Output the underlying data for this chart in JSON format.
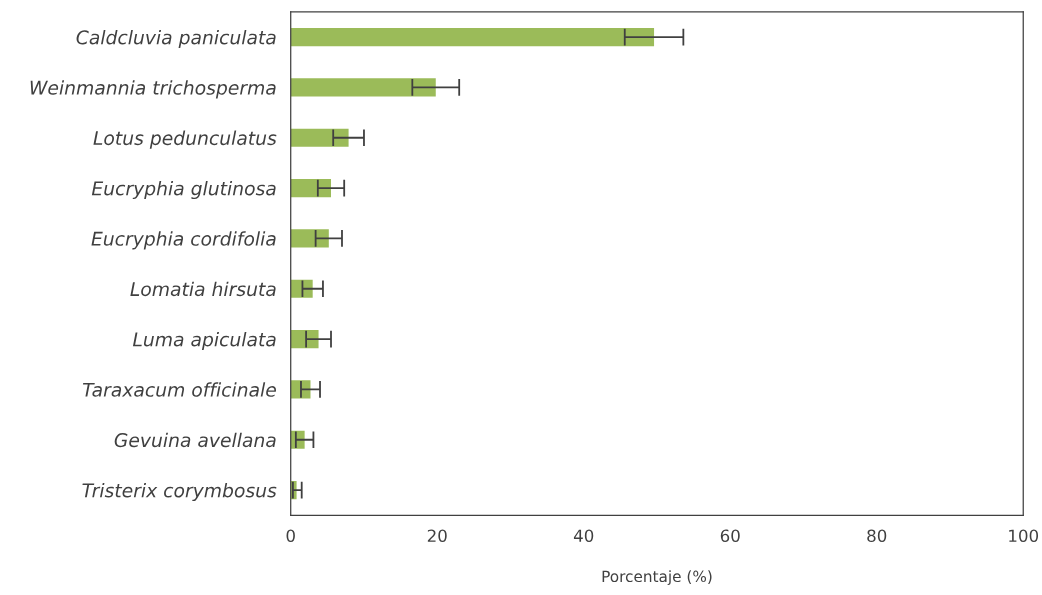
{
  "chart_data": {
    "type": "bar",
    "orientation": "horizontal",
    "xlabel": "Porcentaje (%)",
    "categories": [
      "Caldcluvia paniculata",
      "Weinmannia trichosperma",
      "Lotus pedunculatus",
      "Eucryphia glutinosa",
      "Eucryphia cordifolia",
      "Lomatia hirsuta",
      "Luma apiculata",
      "Taraxacum officinale",
      "Gevuina avellana",
      "Tristerix corymbosus"
    ],
    "values": [
      49.6,
      19.8,
      7.9,
      5.5,
      5.2,
      3.0,
      3.8,
      2.7,
      1.9,
      0.8
    ],
    "errors": [
      4.0,
      3.2,
      2.1,
      1.8,
      1.8,
      1.4,
      1.7,
      1.3,
      1.2,
      [
        0.3,
        1.5
      ]
    ],
    "color": "#9bbb59",
    "xlim": [
      0,
      100
    ],
    "xticks": [
      0,
      20,
      40,
      60,
      80,
      100
    ],
    "grid": false
  }
}
